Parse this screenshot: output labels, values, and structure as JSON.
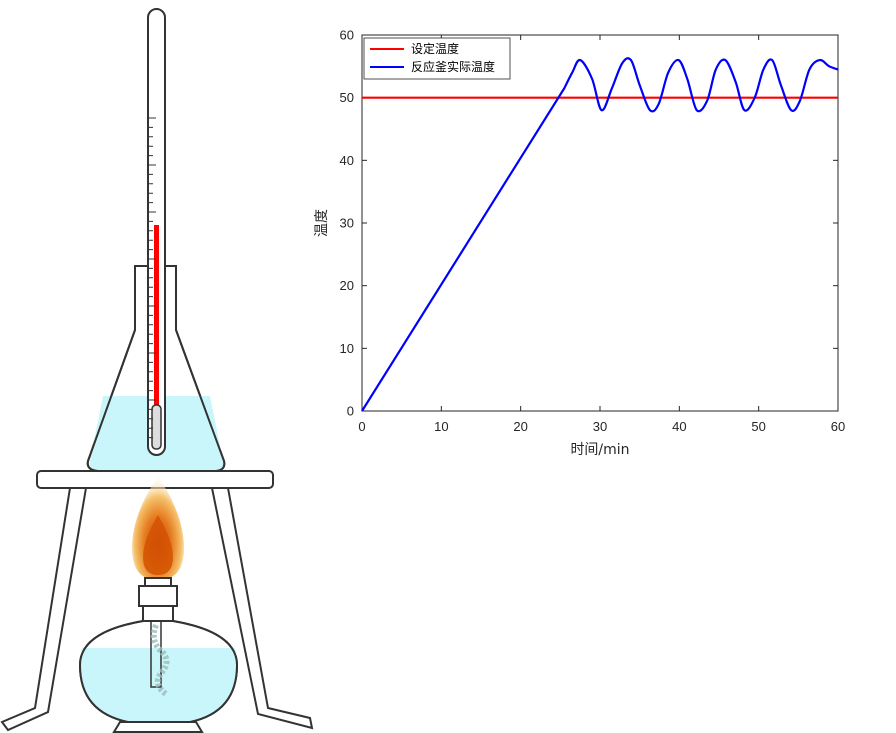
{
  "colors": {
    "setpoint": "#ff0000",
    "actual": "#0000ff",
    "liquid": "#c8f6fa",
    "mercury": "#ff0000"
  },
  "illustration": {
    "thermometer-icon": "thermometer",
    "flask-icon": "erlenmeyer-flask",
    "burner-icon": "alcohol-lamp",
    "flame-icon": "flame",
    "tripod-icon": "tripod-stand"
  },
  "chart_data": {
    "type": "line",
    "xlabel": "时间/min",
    "ylabel": "温度",
    "xlim": [
      0,
      60
    ],
    "ylim": [
      0,
      60
    ],
    "xticks": [
      "0",
      "10",
      "20",
      "30",
      "40",
      "50",
      "60"
    ],
    "yticks": [
      "0",
      "10",
      "20",
      "30",
      "40",
      "50",
      "60"
    ],
    "grid": false,
    "legend_position": "top-left",
    "series": [
      {
        "name": "设定温度",
        "color": "#ff0000",
        "x": [
          0,
          60
        ],
        "y": [
          50,
          50
        ]
      },
      {
        "name": "反应釜实际温度",
        "color": "#0000ff",
        "x": [
          0,
          25.5,
          26.5,
          27.5,
          29,
          30.2,
          31.5,
          32.8,
          33.9,
          35,
          36.3,
          37.4,
          38.6,
          39.9,
          41,
          42.2,
          43.5,
          44.6,
          45.8,
          47.1,
          48.2,
          49.5,
          50.6,
          51.7,
          52.8,
          54.1,
          55.2,
          56.4,
          57.7,
          58.9,
          60
        ],
        "y": [
          0,
          51.5,
          54,
          56,
          53,
          48,
          51.5,
          55.5,
          56,
          52,
          48,
          49,
          54,
          56,
          53,
          48,
          49.5,
          54.5,
          56,
          52.5,
          48,
          50,
          54.5,
          56,
          52,
          48,
          49.5,
          54.5,
          56,
          55,
          54.5
        ]
      }
    ]
  }
}
